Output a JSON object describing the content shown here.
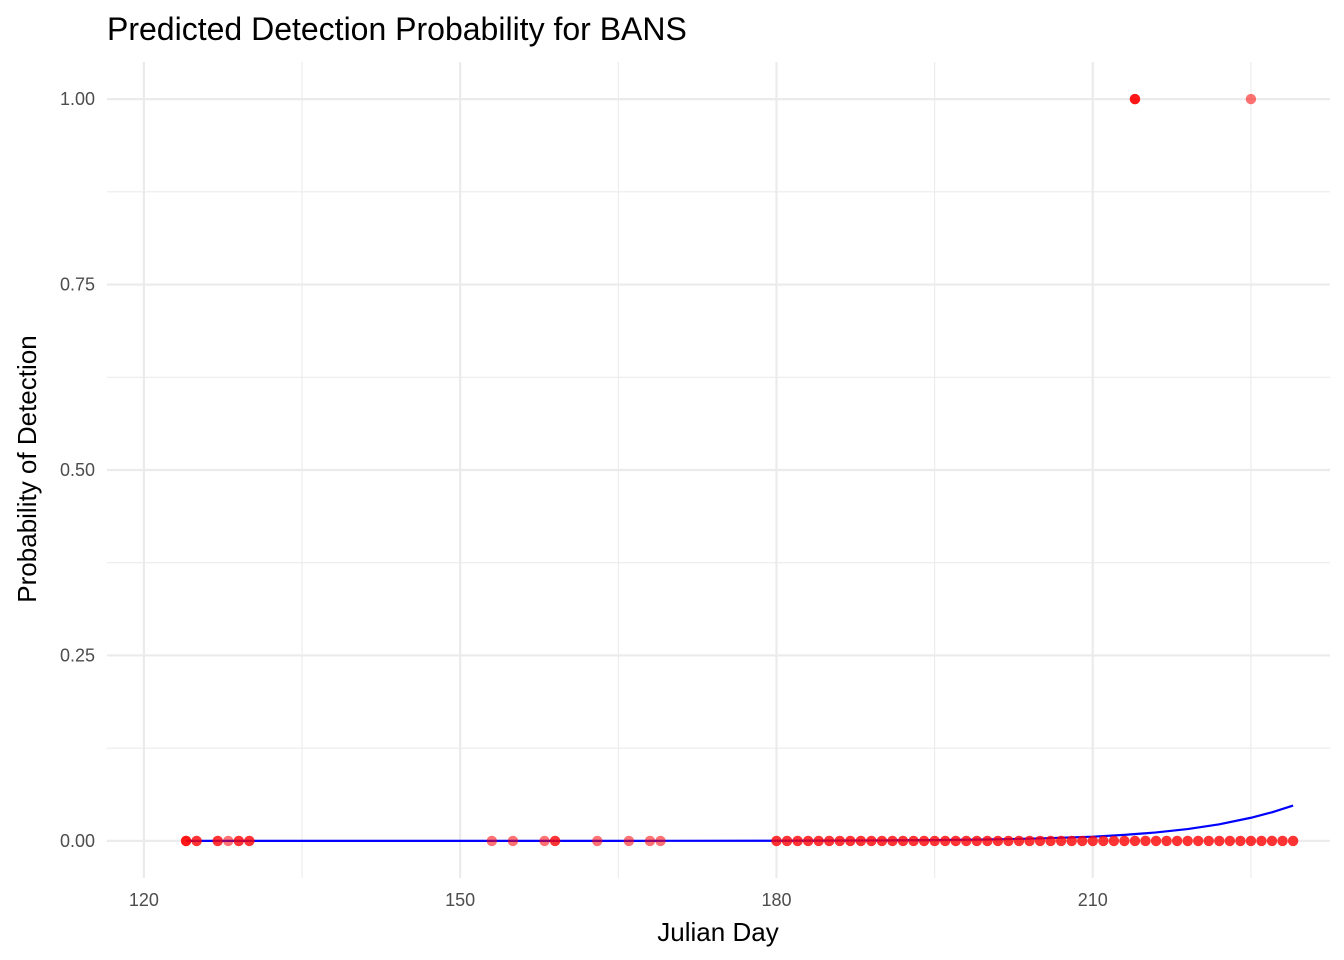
{
  "chart_data": {
    "type": "scatter",
    "title": "Predicted Detection Probability for BANS",
    "xlabel": "Julian Day",
    "ylabel": "Probability of Detection",
    "xlim": [
      116.5,
      232.5
    ],
    "ylim": [
      -0.05,
      1.05
    ],
    "x_ticks": [
      120,
      150,
      180,
      210
    ],
    "x_tick_labels": [
      "120",
      "150",
      "180",
      "210"
    ],
    "y_ticks": [
      0,
      0.25,
      0.5,
      0.75,
      1
    ],
    "y_tick_labels": [
      "0.00",
      "0.25",
      "0.50",
      "0.75",
      "1.00"
    ],
    "grid": true,
    "series": [
      {
        "kind": "points",
        "color": "#ff0000",
        "opacity": 0.55,
        "points": [
          [
            124,
            0
          ],
          [
            124,
            0
          ],
          [
            124,
            0
          ],
          [
            125,
            0
          ],
          [
            125,
            0
          ],
          [
            127,
            0
          ],
          [
            127,
            0
          ],
          [
            128,
            0
          ],
          [
            129,
            0
          ],
          [
            129,
            0
          ],
          [
            130,
            0
          ],
          [
            130,
            0
          ],
          [
            153,
            0
          ],
          [
            155,
            0
          ],
          [
            158,
            0
          ],
          [
            159,
            0
          ],
          [
            159,
            0
          ],
          [
            163,
            0
          ],
          [
            166,
            0
          ],
          [
            168,
            0
          ],
          [
            169,
            0
          ],
          [
            180,
            0
          ],
          [
            180,
            0
          ],
          [
            181,
            0
          ],
          [
            181,
            0
          ],
          [
            182,
            0
          ],
          [
            182,
            0
          ],
          [
            183,
            0
          ],
          [
            183,
            0
          ],
          [
            184,
            0
          ],
          [
            184,
            0
          ],
          [
            185,
            0
          ],
          [
            185,
            0
          ],
          [
            186,
            0
          ],
          [
            186,
            0
          ],
          [
            187,
            0
          ],
          [
            187,
            0
          ],
          [
            188,
            0
          ],
          [
            188,
            0
          ],
          [
            189,
            0
          ],
          [
            189,
            0
          ],
          [
            190,
            0
          ],
          [
            190,
            0
          ],
          [
            191,
            0
          ],
          [
            191,
            0
          ],
          [
            192,
            0
          ],
          [
            192,
            0
          ],
          [
            193,
            0
          ],
          [
            193,
            0
          ],
          [
            194,
            0
          ],
          [
            194,
            0
          ],
          [
            195,
            0
          ],
          [
            195,
            0
          ],
          [
            196,
            0
          ],
          [
            196,
            0
          ],
          [
            197,
            0
          ],
          [
            197,
            0
          ],
          [
            198,
            0
          ],
          [
            198,
            0
          ],
          [
            199,
            0
          ],
          [
            199,
            0
          ],
          [
            200,
            0
          ],
          [
            200,
            0
          ],
          [
            201,
            0
          ],
          [
            201,
            0
          ],
          [
            202,
            0
          ],
          [
            202,
            0
          ],
          [
            203,
            0
          ],
          [
            203,
            0
          ],
          [
            204,
            0
          ],
          [
            204,
            0
          ],
          [
            205,
            0
          ],
          [
            205,
            0
          ],
          [
            206,
            0
          ],
          [
            206,
            0
          ],
          [
            207,
            0
          ],
          [
            207,
            0
          ],
          [
            208,
            0
          ],
          [
            208,
            0
          ],
          [
            209,
            0
          ],
          [
            209,
            0
          ],
          [
            210,
            0
          ],
          [
            210,
            0
          ],
          [
            211,
            0
          ],
          [
            211,
            0
          ],
          [
            212,
            0
          ],
          [
            212,
            0
          ],
          [
            213,
            0
          ],
          [
            213,
            0
          ],
          [
            214,
            0
          ],
          [
            214,
            0
          ],
          [
            215,
            0
          ],
          [
            215,
            0
          ],
          [
            216,
            0
          ],
          [
            216,
            0
          ],
          [
            217,
            0
          ],
          [
            217,
            0
          ],
          [
            218,
            0
          ],
          [
            218,
            0
          ],
          [
            219,
            0
          ],
          [
            219,
            0
          ],
          [
            220,
            0
          ],
          [
            220,
            0
          ],
          [
            221,
            0
          ],
          [
            221,
            0
          ],
          [
            222,
            0
          ],
          [
            222,
            0
          ],
          [
            223,
            0
          ],
          [
            223,
            0
          ],
          [
            224,
            0
          ],
          [
            224,
            0
          ],
          [
            225,
            0
          ],
          [
            225,
            0
          ],
          [
            226,
            0
          ],
          [
            226,
            0
          ],
          [
            227,
            0
          ],
          [
            227,
            0
          ],
          [
            228,
            0
          ],
          [
            228,
            0
          ],
          [
            229,
            0
          ],
          [
            229,
            0
          ],
          [
            214,
            1
          ],
          [
            214,
            1
          ],
          [
            214,
            1
          ],
          [
            225,
            1
          ]
        ]
      },
      {
        "kind": "line",
        "color": "#0000ff",
        "x": [
          124,
          130,
          140,
          150,
          160,
          170,
          180,
          190,
          195,
          200,
          205,
          210,
          213,
          216,
          219,
          222,
          225,
          227,
          229
        ],
        "y": [
          0,
          0,
          0,
          0,
          0,
          0.0001,
          0.0002,
          0.0006,
          0.0011,
          0.0019,
          0.0033,
          0.0057,
          0.0081,
          0.0114,
          0.016,
          0.0224,
          0.0312,
          0.0386,
          0.0476
        ]
      }
    ]
  }
}
